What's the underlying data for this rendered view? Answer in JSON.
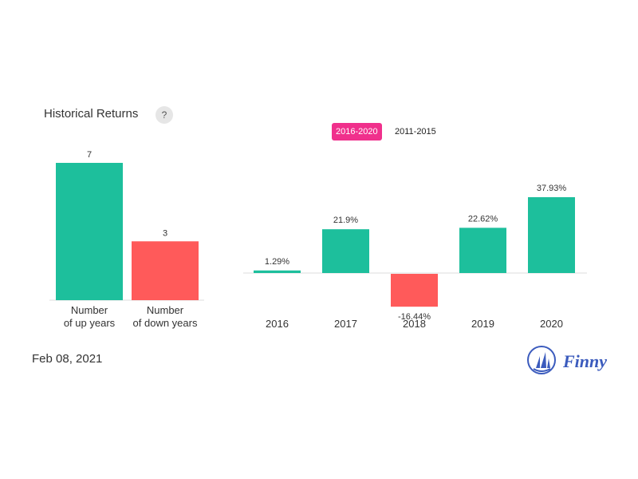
{
  "header": {
    "title": "Historical Returns",
    "help_label": "?"
  },
  "tabs": [
    {
      "label": "2016-2020",
      "active": true
    },
    {
      "label": "2011-2015",
      "active": false
    }
  ],
  "footer": {
    "date": "Feb 08, 2021",
    "brand": "Finny"
  },
  "colors": {
    "positive": "#1dbf9c",
    "negative": "#ff5a5a",
    "active_tab": "#f0308c",
    "brand": "#3b5bbd"
  },
  "chart_data": [
    {
      "type": "bar",
      "categories": [
        "Number\nof up years",
        "Number\nof down years"
      ],
      "values": [
        7,
        3
      ],
      "value_labels": [
        "7",
        "3"
      ],
      "colors": [
        "#1dbf9c",
        "#ff5a5a"
      ],
      "ylim": [
        0,
        7
      ]
    },
    {
      "type": "bar",
      "categories": [
        "2016",
        "2017",
        "2018",
        "2019",
        "2020"
      ],
      "values": [
        1.29,
        21.9,
        -16.44,
        22.62,
        37.93
      ],
      "value_labels": [
        "1.29%",
        "21.9%",
        "-16.44%",
        "22.62%",
        "37.93%"
      ],
      "ylim": [
        -16.44,
        37.93
      ]
    }
  ]
}
